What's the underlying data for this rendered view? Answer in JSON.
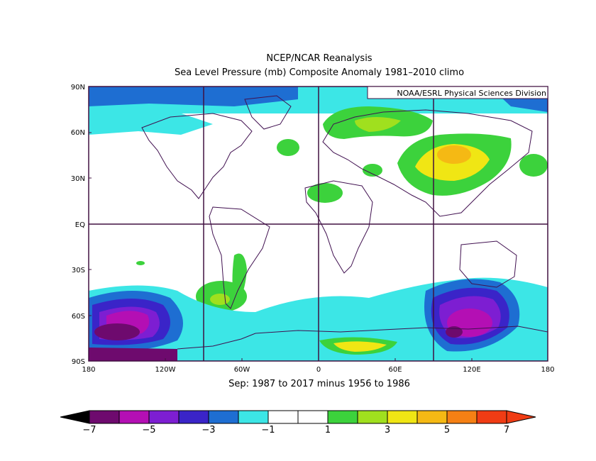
{
  "title": "NCEP/NCAR Reanalysis",
  "subtitle": "Sea Level Pressure (mb) Composite Anomaly 1981–2010 climo",
  "credit": "NOAA/ESRL Physical Sciences Division",
  "period": "Sep: 1987 to 2017 minus 1956 to 1986",
  "map": {
    "lat_labels": [
      "90N",
      "60N",
      "30N",
      "EQ",
      "30S",
      "60S",
      "90S"
    ],
    "lon_labels": [
      "180",
      "120W",
      "60W",
      "0",
      "60E",
      "120E",
      "180"
    ]
  },
  "colorbar": {
    "colors": [
      "#6e0a6e",
      "#b40fb4",
      "#7d1ed2",
      "#3a24c8",
      "#1e6ed2",
      "#3ce6e6",
      "#ffffff",
      "#ffffff",
      "#3cd23c",
      "#a0e01e",
      "#f0e614",
      "#f5b914",
      "#f58014",
      "#f03c14"
    ],
    "tick_labels": [
      "−7",
      "−5",
      "−3",
      "−1",
      "1",
      "3",
      "5",
      "7"
    ]
  },
  "colors": {
    "frame": "#401040",
    "coast": "#401050",
    "land_outline": "#3a0a45"
  }
}
